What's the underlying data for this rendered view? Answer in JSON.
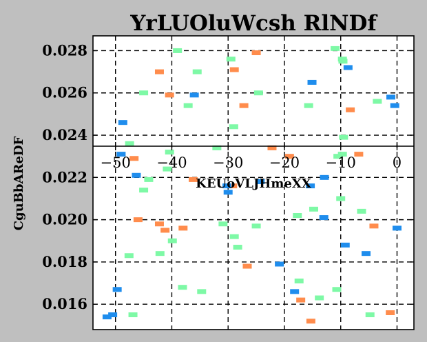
{
  "chart_data": {
    "type": "scatter",
    "title": "YrLUOluWcsh RlNDf",
    "xlabel": "KEUoVLJHmeXX",
    "ylabel": "CguBbAReDF",
    "xlim": [
      -54,
      3
    ],
    "ylim": [
      0.0148,
      0.0287
    ],
    "xticks": [
      -50,
      -40,
      -30,
      -20,
      -10,
      0
    ],
    "yticks": [
      0.016,
      0.018,
      0.02,
      0.022,
      0.024,
      0.026,
      0.028
    ],
    "xtick_labels": [
      "−50",
      "−40",
      "−30",
      "−20",
      "−10",
      "0"
    ],
    "ytick_labels": [
      "0.016",
      "0.018",
      "0.020",
      "0.022",
      "0.024",
      "0.026",
      "0.028"
    ],
    "grid": true,
    "x_axis_position": "inside, at y ≈ 0.0234",
    "marker": "horizontal dash",
    "colors": {
      "background": "#bfbfbf",
      "plot_bg": "#ffffff",
      "mint": "#7ef9a6",
      "orange": "#ff8c4c",
      "blue": "#1f8ded"
    },
    "series": [
      {
        "color": "#7ef9a6",
        "points": [
          [
            -39,
            0.028
          ],
          [
            -29.5,
            0.0276
          ],
          [
            -35.5,
            0.027
          ],
          [
            -11,
            0.0281
          ],
          [
            -9.7,
            0.0276
          ],
          [
            -9.6,
            0.0275
          ],
          [
            -45,
            0.026
          ],
          [
            -24.6,
            0.026
          ],
          [
            -37.1,
            0.0254
          ],
          [
            -15.7,
            0.0254
          ],
          [
            -3.5,
            0.0256
          ],
          [
            -29,
            0.0244
          ],
          [
            -9.5,
            0.0239
          ],
          [
            -47.5,
            0.0236
          ],
          [
            -32,
            0.0234
          ],
          [
            -40.4,
            0.0232
          ],
          [
            -10.5,
            0.023
          ],
          [
            -9.7,
            0.0231
          ],
          [
            -40.8,
            0.0224
          ],
          [
            -44.1,
            0.0219
          ],
          [
            -45,
            0.0214
          ],
          [
            -10,
            0.021
          ],
          [
            -14.8,
            0.0205
          ],
          [
            -6.3,
            0.0204
          ],
          [
            -17.7,
            0.0202
          ],
          [
            -30.9,
            0.0198
          ],
          [
            -25,
            0.0197
          ],
          [
            -28.9,
            0.0192
          ],
          [
            -39.9,
            0.019
          ],
          [
            -28.3,
            0.0187
          ],
          [
            -47.6,
            0.0183
          ],
          [
            -42.1,
            0.0184
          ],
          [
            -38.1,
            0.0168
          ],
          [
            -34.7,
            0.0166
          ],
          [
            -17.4,
            0.0171
          ],
          [
            -10.7,
            0.0167
          ],
          [
            -13.8,
            0.0163
          ],
          [
            -46.9,
            0.0155
          ],
          [
            -4.8,
            0.0155
          ]
        ]
      },
      {
        "color": "#ff8c4c",
        "points": [
          [
            -25,
            0.0279
          ],
          [
            -42.2,
            0.027
          ],
          [
            -28.9,
            0.0271
          ],
          [
            -40.4,
            0.0259
          ],
          [
            -27.2,
            0.0254
          ],
          [
            -8.3,
            0.0252
          ],
          [
            -22.2,
            0.0234
          ],
          [
            -19.1,
            0.023
          ],
          [
            -6.8,
            0.0231
          ],
          [
            -46.7,
            0.0229
          ],
          [
            -36.2,
            0.0219
          ],
          [
            -29.2,
            0.0216
          ],
          [
            -46,
            0.02
          ],
          [
            -42.2,
            0.0198
          ],
          [
            -41.2,
            0.0195
          ],
          [
            -38,
            0.0196
          ],
          [
            -4.1,
            0.0197
          ],
          [
            -26.6,
            0.0178
          ],
          [
            -17.1,
            0.0162
          ],
          [
            -15.3,
            0.0152
          ],
          [
            -1.2,
            0.0156
          ]
        ]
      },
      {
        "color": "#1f8ded",
        "points": [
          [
            -8.7,
            0.0272
          ],
          [
            -15.1,
            0.0265
          ],
          [
            -36,
            0.0259
          ],
          [
            -1.1,
            0.0258
          ],
          [
            -0.4,
            0.0254
          ],
          [
            -48.7,
            0.0246
          ],
          [
            -49,
            0.0231
          ],
          [
            -46.3,
            0.0221
          ],
          [
            -24.3,
            0.0218
          ],
          [
            -12.9,
            0.022
          ],
          [
            -30.2,
            0.0216
          ],
          [
            -30,
            0.0213
          ],
          [
            -15.4,
            0.0216
          ],
          [
            -13,
            0.0201
          ],
          [
            0,
            0.0196
          ],
          [
            -9.2,
            0.0188
          ],
          [
            -5.5,
            0.0184
          ],
          [
            -20.9,
            0.0179
          ],
          [
            -49.7,
            0.0167
          ],
          [
            -18.2,
            0.0166
          ],
          [
            -51.5,
            0.0154
          ],
          [
            -50.5,
            0.0155
          ]
        ]
      }
    ]
  }
}
